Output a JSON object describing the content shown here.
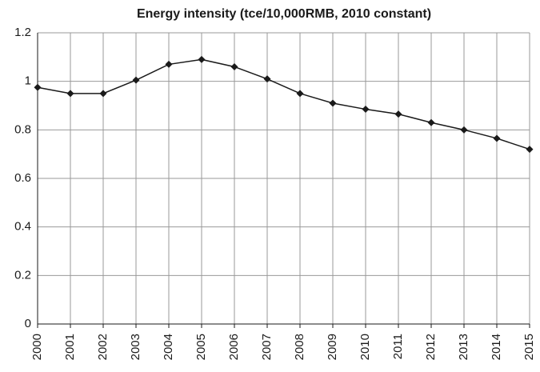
{
  "chart_data": {
    "type": "line",
    "title": "Energy intensity (tce/10,000RMB, 2010 constant)",
    "categories": [
      "2000",
      "2001",
      "2002",
      "2003",
      "2004",
      "2005",
      "2006",
      "2007",
      "2008",
      "2009",
      "2010",
      "2011",
      "2012",
      "2013",
      "2014",
      "2015"
    ],
    "series": [
      {
        "name": "Energy intensity",
        "color": "#1a1a1a",
        "values": [
          0.975,
          0.95,
          0.95,
          1.005,
          1.07,
          1.09,
          1.06,
          1.01,
          0.95,
          0.91,
          0.885,
          0.865,
          0.83,
          0.8,
          0.765,
          0.72
        ]
      }
    ],
    "ylim": [
      0,
      1.2
    ],
    "yticks": [
      0,
      0.2,
      0.4,
      0.6,
      0.8,
      1,
      1.2
    ],
    "grid": true
  }
}
